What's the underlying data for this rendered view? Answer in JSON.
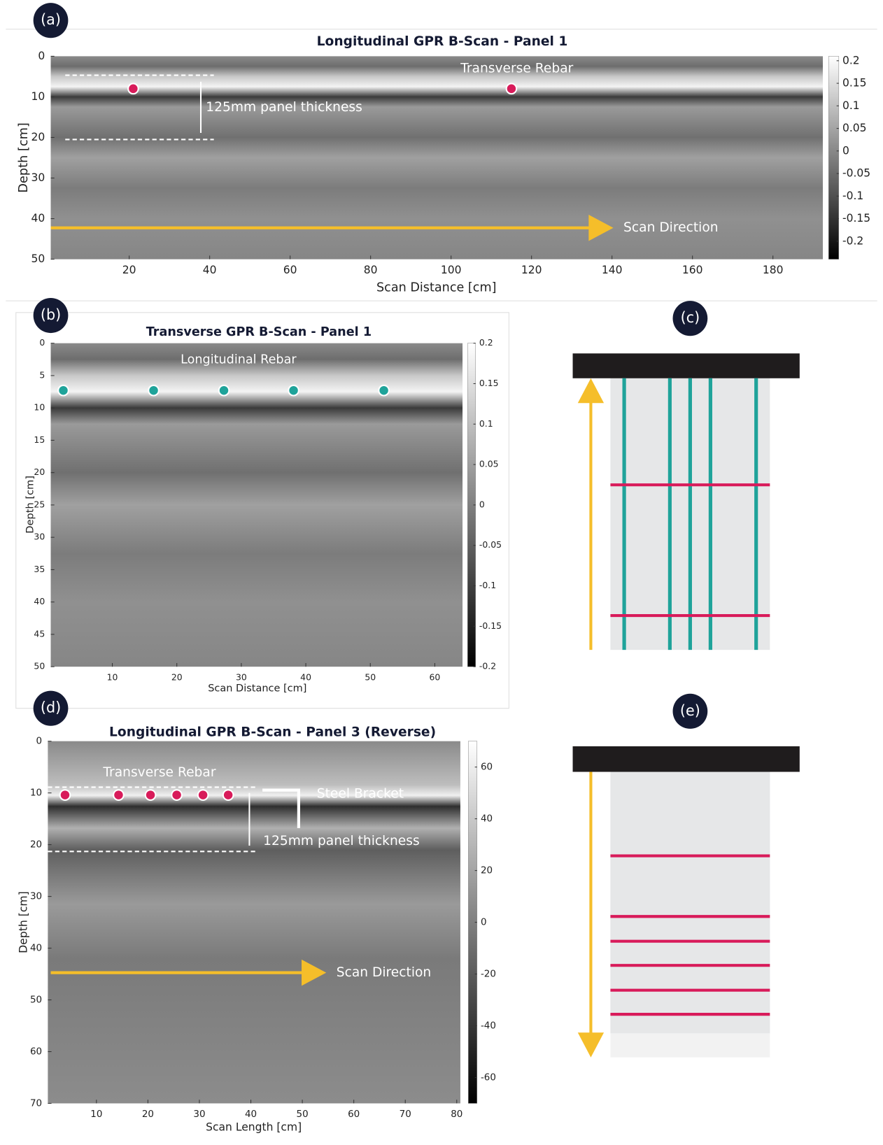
{
  "chart_data": [
    {
      "type": "heatmap",
      "label": "(a)",
      "title": "Longitudinal GPR B-Scan - Panel 1",
      "xlabel": "Scan Distance [cm]",
      "ylabel": "Depth [cm]",
      "xlim": [
        0.5,
        192.4
      ],
      "ylim": [
        0,
        50
      ],
      "y_inverted": true,
      "xticks": [
        20,
        40,
        60,
        80,
        100,
        120,
        140,
        160,
        180
      ],
      "yticks": [
        0,
        10,
        20,
        30,
        40,
        50
      ],
      "clim": [
        -0.24,
        0.21
      ],
      "cticks": [
        0.2,
        0.15,
        0.1,
        0.05,
        0,
        -0.05,
        -0.1,
        -0.15,
        -0.2
      ],
      "series": [
        {
          "color": "#d81b5a",
          "x": [
            21,
            115
          ],
          "values": [
            8,
            8
          ]
        }
      ],
      "annotations": [
        "Transverse Rebar",
        "125mm panel thickness",
        "Scan Direction"
      ]
    },
    {
      "type": "heatmap",
      "label": "(b)",
      "title": "Transverse GPR B-Scan - Panel 1",
      "xlabel": "Scan Distance [cm]",
      "ylabel": "Depth [cm]",
      "xlim": [
        0.45,
        64.3
      ],
      "ylim": [
        0,
        50
      ],
      "y_inverted": true,
      "xticks": [
        10,
        20,
        30,
        40,
        50,
        60
      ],
      "yticks": [
        0,
        5,
        10,
        15,
        20,
        25,
        30,
        35,
        40,
        45,
        50
      ],
      "clim": [
        -0.2,
        0.2
      ],
      "cticks": [
        0.2,
        0.15,
        0.1,
        0.05,
        0,
        -0.05,
        -0.1,
        -0.15,
        -0.2
      ],
      "series": [
        {
          "color": "#1fa39a",
          "x": [
            2.4,
            16.4,
            27.3,
            38.1,
            52.1
          ],
          "values": [
            7.3,
            7.3,
            7.3,
            7.3,
            7.3
          ]
        }
      ],
      "annotations": [
        "Longitudinal Rebar"
      ]
    },
    {
      "type": "heatmap",
      "label": "(d)",
      "title": "Longitudinal GPR B-Scan - Panel 3 (Reverse)",
      "xlabel": "Scan Length [cm]",
      "ylabel": "Depth [cm]",
      "xlim": [
        0.56,
        80.7
      ],
      "ylim": [
        0,
        70
      ],
      "y_inverted": true,
      "xticks": [
        10,
        20,
        30,
        40,
        50,
        60,
        70,
        80
      ],
      "yticks": [
        0,
        10,
        20,
        30,
        40,
        50,
        60,
        70
      ],
      "clim": [
        -70,
        70
      ],
      "cticks": [
        60,
        40,
        20,
        0,
        -20,
        -40,
        -60
      ],
      "series": [
        {
          "color": "#d81b5a",
          "x": [
            3.9,
            14.3,
            20.5,
            25.6,
            30.7,
            35.6
          ],
          "values": [
            10.4,
            10.4,
            10.4,
            10.4,
            10.4,
            10.4
          ]
        }
      ],
      "annotations": [
        "Transverse Rebar",
        "Steel Bracket",
        "125mm panel thickness",
        "Scan Direction"
      ]
    }
  ],
  "diagrams": [
    {
      "label": "(c)"
    },
    {
      "label": "(e)"
    }
  ]
}
